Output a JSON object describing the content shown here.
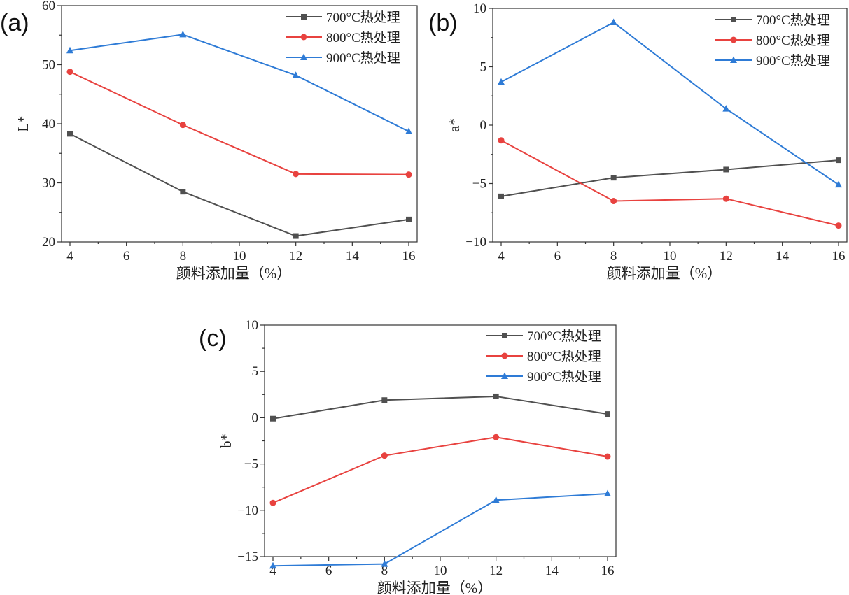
{
  "chart_data": [
    {
      "type": "line",
      "label": "(a)",
      "xlabel": "颜料添加量（%）",
      "ylabel": "L*",
      "xlim": [
        4,
        16
      ],
      "ylim": [
        20,
        60
      ],
      "xticks": [
        4,
        6,
        8,
        10,
        12,
        14,
        16
      ],
      "yticks": [
        20,
        30,
        40,
        50,
        60
      ],
      "x": [
        4,
        8,
        12,
        16
      ],
      "legend_position": "top-right",
      "series": [
        {
          "name": "700°C热处理",
          "color": "#505050",
          "marker": "square",
          "values": [
            38.3,
            28.5,
            21.0,
            23.8
          ]
        },
        {
          "name": "800°C热处理",
          "color": "#e8423f",
          "marker": "circle",
          "values": [
            48.8,
            39.8,
            31.5,
            31.4
          ]
        },
        {
          "name": "900°C热处理",
          "color": "#2e7bd6",
          "marker": "triangle",
          "values": [
            52.4,
            55.1,
            48.2,
            38.7
          ]
        }
      ]
    },
    {
      "type": "line",
      "label": "(b)",
      "xlabel": "颜料添加量（%）",
      "ylabel": "a*",
      "xlim": [
        4,
        16
      ],
      "ylim": [
        -10,
        10
      ],
      "xticks": [
        4,
        6,
        8,
        10,
        12,
        14,
        16
      ],
      "yticks": [
        -10,
        -5,
        0,
        5,
        10
      ],
      "x": [
        4,
        8,
        12,
        16
      ],
      "legend_position": "top-right",
      "series": [
        {
          "name": "700°C热处理",
          "color": "#505050",
          "marker": "square",
          "values": [
            -6.1,
            -4.5,
            -3.8,
            -3.0
          ]
        },
        {
          "name": "800°C热处理",
          "color": "#e8423f",
          "marker": "circle",
          "values": [
            -1.3,
            -6.5,
            -6.3,
            -8.6
          ]
        },
        {
          "name": "900°C热处理",
          "color": "#2e7bd6",
          "marker": "triangle",
          "values": [
            3.7,
            8.8,
            1.4,
            -5.1
          ]
        }
      ]
    },
    {
      "type": "line",
      "label": "(c)",
      "xlabel": "颜料添加量（%）",
      "ylabel": "b*",
      "xlim": [
        4,
        16
      ],
      "ylim": [
        -15,
        10
      ],
      "xticks": [
        4,
        6,
        8,
        10,
        12,
        14,
        16
      ],
      "yticks": [
        -15,
        -10,
        -5,
        0,
        5,
        10
      ],
      "x": [
        4,
        8,
        12,
        16
      ],
      "legend_position": "top-right",
      "series": [
        {
          "name": "700°C热处理",
          "color": "#505050",
          "marker": "square",
          "values": [
            -0.1,
            1.9,
            2.3,
            0.4
          ]
        },
        {
          "name": "800°C热处理",
          "color": "#e8423f",
          "marker": "circle",
          "values": [
            -9.2,
            -4.1,
            -2.1,
            -4.2
          ]
        },
        {
          "name": "900°C热处理",
          "color": "#2e7bd6",
          "marker": "triangle",
          "values": [
            -16.0,
            -15.8,
            -8.9,
            -8.2
          ]
        }
      ]
    }
  ]
}
